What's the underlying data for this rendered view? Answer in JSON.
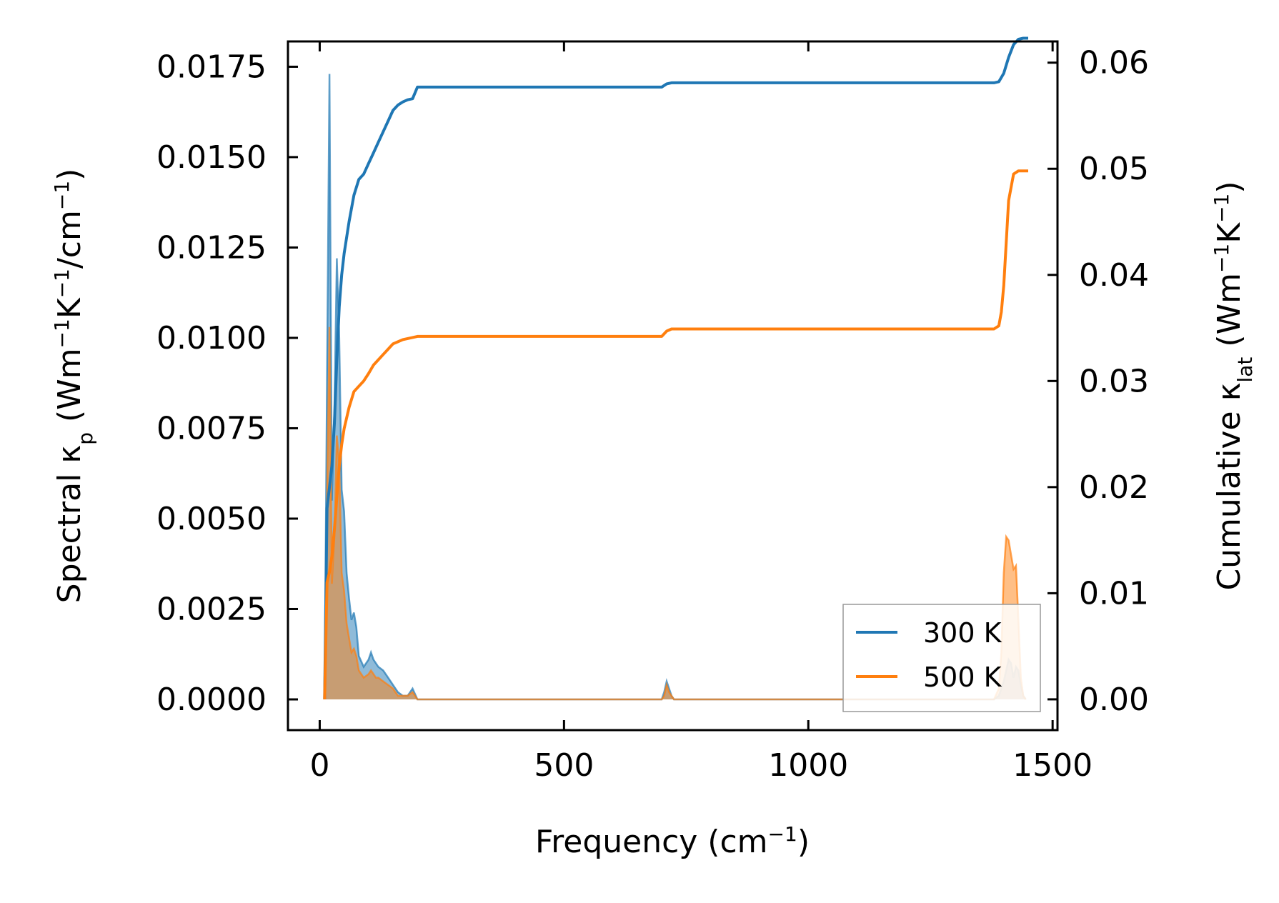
{
  "chart_data": {
    "type": "line",
    "xlabel": {
      "main": "Frequency (cm",
      "sup": "−1",
      "tail": ")"
    },
    "ylabel_left": {
      "a": "Spectral κ",
      "sub": "p",
      "b": " (Wm",
      "sup1": "−1",
      "c": "K",
      "sup2": "−1",
      "d": "/cm",
      "sup3": "−1",
      "e": ")"
    },
    "ylabel_right": {
      "a": "Cumulative κ",
      "sub": "lat",
      "b": " (Wm",
      "sup1": "−1",
      "c": "K",
      "sup2": "−1",
      "d": ")"
    },
    "xlim": [
      -65,
      1510
    ],
    "ylim_left": [
      -0.00085,
      0.0182
    ],
    "ylim_right": [
      -0.0029,
      0.062
    ],
    "x_ticks": [
      0,
      500,
      1000,
      1500
    ],
    "x_tick_labels": [
      "0",
      "500",
      "1000",
      "1500"
    ],
    "y_left_ticks": [
      0.0,
      0.0025,
      0.005,
      0.0075,
      0.01,
      0.0125,
      0.015,
      0.0175
    ],
    "y_left_tick_labels": [
      "0.0000",
      "0.0025",
      "0.0050",
      "0.0075",
      "0.0100",
      "0.0125",
      "0.0150",
      "0.0175"
    ],
    "y_right_ticks": [
      0.0,
      0.01,
      0.02,
      0.03,
      0.04,
      0.05,
      0.06
    ],
    "y_right_tick_labels": [
      "0.00",
      "0.01",
      "0.02",
      "0.03",
      "0.04",
      "0.05",
      "0.06"
    ],
    "legend_position": "bottom-right",
    "series": [
      {
        "name": "300 K",
        "color": "#1f77b4",
        "spectral_x": [
          10,
          15,
          20,
          25,
          30,
          35,
          40,
          45,
          50,
          55,
          60,
          65,
          70,
          75,
          80,
          90,
          100,
          105,
          110,
          115,
          120,
          130,
          140,
          150,
          160,
          170,
          180,
          190,
          200,
          220,
          700,
          705,
          710,
          715,
          720,
          725,
          730,
          1380,
          1390,
          1400,
          1410,
          1415,
          1420,
          1425,
          1430,
          1435,
          1440,
          1445
        ],
        "spectral_y": [
          0.0002,
          0.009,
          0.0173,
          0.0055,
          0.008,
          0.0122,
          0.01,
          0.0058,
          0.0052,
          0.0035,
          0.0028,
          0.0022,
          0.0024,
          0.002,
          0.0012,
          0.0009,
          0.0011,
          0.0013,
          0.0011,
          0.001,
          0.0009,
          0.0008,
          0.0006,
          0.0004,
          0.0002,
          0.0001,
          0.0001,
          0.0003,
          0.0,
          0.0,
          0.0,
          0.0002,
          0.0005,
          0.0003,
          0.0001,
          0.0,
          0.0,
          0.0,
          0.0001,
          0.0005,
          0.0011,
          0.001,
          0.0006,
          0.0009,
          0.0008,
          0.0004,
          0.0001,
          0.0
        ],
        "cumulative_x": [
          10,
          15,
          20,
          25,
          30,
          35,
          40,
          45,
          50,
          60,
          70,
          80,
          90,
          100,
          110,
          120,
          130,
          140,
          150,
          160,
          170,
          180,
          190,
          200,
          250,
          700,
          710,
          720,
          800,
          1380,
          1390,
          1400,
          1410,
          1420,
          1430,
          1440,
          1450
        ],
        "cumulative_y": [
          0.0,
          0.018,
          0.02,
          0.022,
          0.026,
          0.032,
          0.037,
          0.04,
          0.042,
          0.045,
          0.0475,
          0.049,
          0.0495,
          0.0505,
          0.0515,
          0.0525,
          0.0535,
          0.0545,
          0.0555,
          0.056,
          0.0563,
          0.0565,
          0.0566,
          0.0577,
          0.0577,
          0.0577,
          0.058,
          0.0581,
          0.0581,
          0.0581,
          0.0582,
          0.059,
          0.0605,
          0.0617,
          0.0622,
          0.0623,
          0.0623
        ]
      },
      {
        "name": "500 K",
        "color": "#ff7f0e",
        "spectral_x": [
          10,
          15,
          20,
          25,
          30,
          35,
          40,
          45,
          50,
          55,
          60,
          65,
          70,
          75,
          80,
          90,
          100,
          105,
          110,
          115,
          120,
          130,
          140,
          150,
          160,
          170,
          180,
          190,
          200,
          220,
          700,
          705,
          710,
          715,
          720,
          725,
          730,
          1380,
          1390,
          1395,
          1400,
          1405,
          1410,
          1415,
          1420,
          1425,
          1430,
          1435,
          1440,
          1445
        ],
        "spectral_y": [
          0.0002,
          0.0055,
          0.0103,
          0.0032,
          0.0045,
          0.0073,
          0.0065,
          0.0035,
          0.003,
          0.0021,
          0.0017,
          0.0013,
          0.0014,
          0.0012,
          0.0008,
          0.0006,
          0.0007,
          0.0008,
          0.0007,
          0.0006,
          0.0006,
          0.0005,
          0.0004,
          0.0003,
          0.0001,
          0.0001,
          0.0001,
          0.0002,
          0.0,
          0.0,
          0.0,
          0.0001,
          0.0004,
          0.0002,
          0.0001,
          0.0,
          0.0,
          0.0,
          0.0003,
          0.0013,
          0.0035,
          0.0045,
          0.0044,
          0.004,
          0.0036,
          0.0037,
          0.0022,
          0.0006,
          0.0001,
          0.0
        ],
        "cumulative_x": [
          10,
          15,
          20,
          25,
          30,
          35,
          40,
          45,
          50,
          60,
          70,
          80,
          90,
          100,
          110,
          120,
          130,
          140,
          150,
          160,
          170,
          180,
          190,
          200,
          250,
          700,
          710,
          720,
          800,
          1380,
          1390,
          1395,
          1400,
          1405,
          1410,
          1420,
          1430,
          1440,
          1450
        ],
        "cumulative_y": [
          0.0,
          0.011,
          0.012,
          0.0135,
          0.016,
          0.019,
          0.022,
          0.024,
          0.0255,
          0.0275,
          0.029,
          0.0295,
          0.03,
          0.0307,
          0.0315,
          0.032,
          0.0325,
          0.033,
          0.0335,
          0.0337,
          0.0339,
          0.034,
          0.0341,
          0.0342,
          0.0342,
          0.0342,
          0.0347,
          0.0349,
          0.0349,
          0.0349,
          0.0352,
          0.0365,
          0.039,
          0.043,
          0.047,
          0.0495,
          0.0498,
          0.0498,
          0.0498
        ]
      }
    ]
  }
}
